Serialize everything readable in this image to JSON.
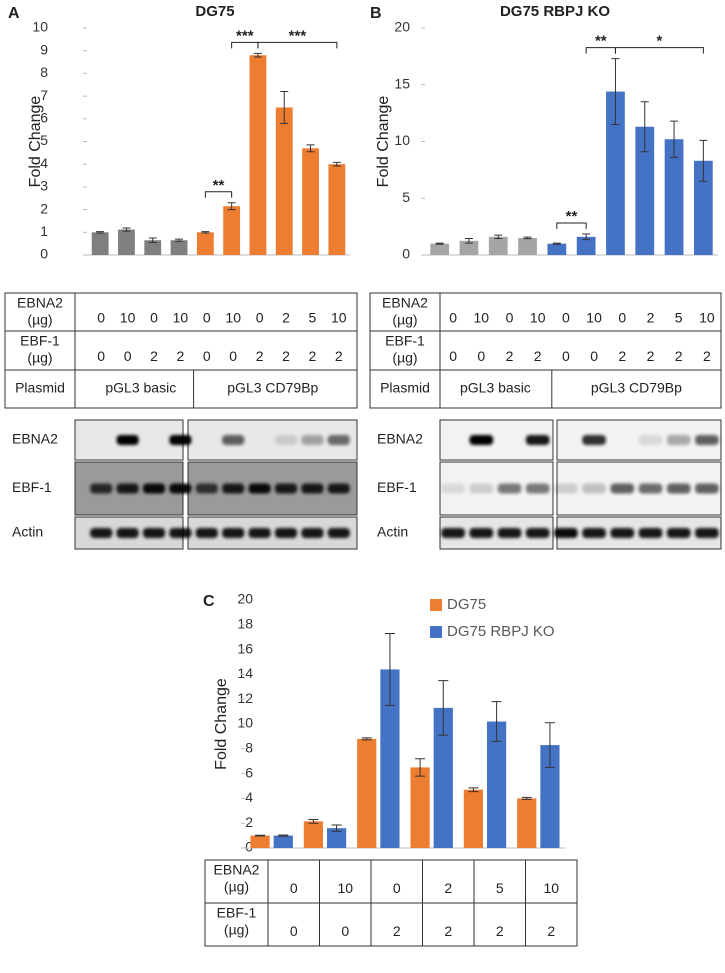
{
  "chart_data": [
    {
      "type": "bar",
      "panel_label": "A",
      "title": "DG75",
      "y_label": "Fold Change",
      "values": [
        1.0,
        1.12,
        0.65,
        0.65,
        1.0,
        2.15,
        8.8,
        6.5,
        4.7,
        4.0
      ],
      "errors": [
        0.03,
        0.07,
        0.1,
        0.05,
        0.03,
        0.15,
        0.08,
        0.7,
        0.15,
        0.08
      ],
      "colors": [
        "#7f7f7f",
        "#7f7f7f",
        "#7f7f7f",
        "#7f7f7f",
        "#ed7d31",
        "#ed7d31",
        "#ed7d31",
        "#ed7d31",
        "#ed7d31",
        "#ed7d31"
      ],
      "ylim": [
        0,
        10
      ],
      "yticks": [
        0,
        1,
        2,
        3,
        4,
        5,
        6,
        7,
        8,
        9,
        10
      ],
      "annotations": [
        "**",
        "***",
        "***"
      ]
    },
    {
      "type": "bar",
      "panel_label": "B",
      "title": "DG75 RBPJ KO",
      "y_label": "Fold Change",
      "values": [
        1.0,
        1.25,
        1.6,
        1.5,
        1.0,
        1.6,
        14.4,
        11.3,
        10.2,
        8.3
      ],
      "errors": [
        0.05,
        0.2,
        0.15,
        0.07,
        0.05,
        0.25,
        2.9,
        2.2,
        1.6,
        1.8
      ],
      "colors": [
        "#a5a5a5",
        "#a5a5a5",
        "#a5a5a5",
        "#a5a5a5",
        "#4472c4",
        "#4472c4",
        "#4472c4",
        "#4472c4",
        "#4472c4",
        "#4472c4"
      ],
      "ylim": [
        0,
        20
      ],
      "yticks": [
        0,
        5,
        10,
        15,
        20
      ],
      "annotations": [
        "**",
        "**",
        "*"
      ]
    },
    {
      "type": "grouped_bar",
      "panel_label": "C",
      "y_label": "Fold Change",
      "categories": [
        null,
        null,
        null,
        null,
        null,
        null
      ],
      "series": [
        {
          "name": "DG75",
          "color": "#ed7d31",
          "values": [
            1.0,
            2.15,
            8.8,
            6.5,
            4.7,
            4.0
          ],
          "errors": [
            0.03,
            0.15,
            0.08,
            0.7,
            0.15,
            0.08
          ]
        },
        {
          "name": "DG75 RBPJ KO",
          "color": "#4472c4",
          "values": [
            1.0,
            1.6,
            14.4,
            11.3,
            10.2,
            8.3
          ],
          "errors": [
            0.05,
            0.25,
            2.9,
            2.2,
            1.6,
            1.8
          ]
        }
      ],
      "ylim": [
        0,
        20
      ],
      "yticks": [
        0,
        2,
        4,
        6,
        8,
        10,
        12,
        14,
        16,
        18,
        20
      ],
      "legend": "upper-right"
    }
  ],
  "tables": [
    {
      "rows": [
        {
          "label": [
            "EBNA2",
            "(µg)"
          ],
          "cells": [
            0,
            10,
            0,
            10,
            0,
            10,
            0,
            2,
            5,
            10
          ]
        },
        {
          "label": [
            "EBF-1",
            "(µg)"
          ],
          "cells": [
            0,
            0,
            2,
            2,
            0,
            0,
            2,
            2,
            2,
            2
          ]
        },
        {
          "label": [
            "Plasmid"
          ],
          "cells": [
            "pGL3 basic",
            "pGL3 CD79Bp"
          ]
        }
      ]
    },
    {
      "rows": [
        {
          "label": [
            "EBNA2",
            "(µg)"
          ],
          "cells": [
            0,
            10,
            0,
            10,
            0,
            10,
            0,
            2,
            5,
            10
          ]
        },
        {
          "label": [
            "EBF-1",
            "(µg)"
          ],
          "cells": [
            0,
            0,
            2,
            2,
            0,
            0,
            2,
            2,
            2,
            2
          ]
        },
        {
          "label": [
            "Plasmid"
          ],
          "cells": [
            "pGL3 basic",
            "pGL3 CD79Bp"
          ]
        }
      ]
    },
    {
      "rows": [
        {
          "label": [
            "EBNA2",
            "(µg)"
          ],
          "cells": [
            0,
            10,
            0,
            2,
            5,
            10
          ]
        },
        {
          "label": [
            "EBF-1",
            "(µg)"
          ],
          "cells": [
            0,
            0,
            2,
            2,
            2,
            2
          ]
        }
      ]
    }
  ],
  "blots": [
    {
      "rows": [
        "EBNA2",
        "EBF-1",
        "Actin"
      ]
    },
    {
      "rows": [
        "EBNA2",
        "EBF-1",
        "Actin"
      ]
    }
  ]
}
